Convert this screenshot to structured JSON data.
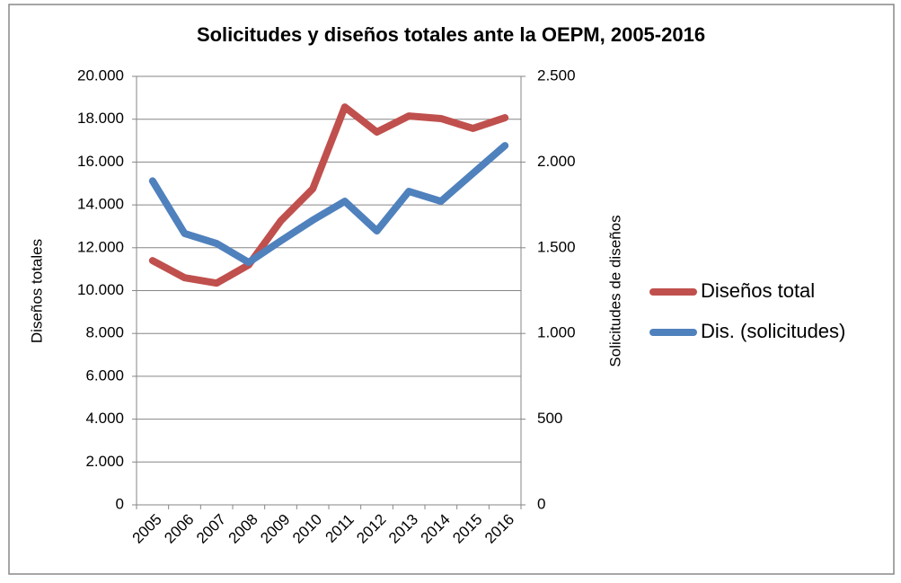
{
  "chart_data": {
    "type": "line",
    "title": "Solicitudes y diseños totales ante la OEPM, 2005-2016",
    "y_label": "Diseños totales",
    "y2_label": "Solicitudes de diseños",
    "categories": [
      "2005",
      "2006",
      "2007",
      "2008",
      "2009",
      "2010",
      "2011",
      "2012",
      "2013",
      "2014",
      "2015",
      "2016"
    ],
    "series": [
      {
        "name": "Diseños total",
        "color": "#c0504d",
        "values": [
          11400,
          10600,
          10350,
          11200,
          13250,
          14750,
          18570,
          17400,
          18150,
          18030,
          17570,
          18070
        ]
      },
      {
        "name": "Dis. (solicitudes)",
        "color": "#4f81bd",
        "axis": "y2",
        "values": [
          1890,
          1583,
          1525,
          1415,
          1540,
          1661,
          1771,
          1598,
          1829,
          1771,
          1934,
          2096
        ]
      }
    ],
    "ylim": [
      0,
      20000
    ],
    "yticks": [
      {
        "value": 0,
        "label": "0"
      },
      {
        "value": 2000,
        "label": "2.000"
      },
      {
        "value": 4000,
        "label": "4.000"
      },
      {
        "value": 6000,
        "label": "6.000"
      },
      {
        "value": 8000,
        "label": "8.000"
      },
      {
        "value": 10000,
        "label": "10.000"
      },
      {
        "value": 12000,
        "label": "12.000"
      },
      {
        "value": 14000,
        "label": "14.000"
      },
      {
        "value": 16000,
        "label": "16.000"
      },
      {
        "value": 18000,
        "label": "18.000"
      },
      {
        "value": 20000,
        "label": "20.000"
      }
    ],
    "y2lim": [
      0,
      2500
    ],
    "y2ticks": [
      {
        "value": 0,
        "label": "0"
      },
      {
        "value": 500,
        "label": "500"
      },
      {
        "value": 1000,
        "label": "1.000"
      },
      {
        "value": 1500,
        "label": "1.500"
      },
      {
        "value": 2000,
        "label": "2.000"
      },
      {
        "value": 2500,
        "label": "2.500"
      }
    ],
    "grid": true,
    "legend": "right"
  }
}
